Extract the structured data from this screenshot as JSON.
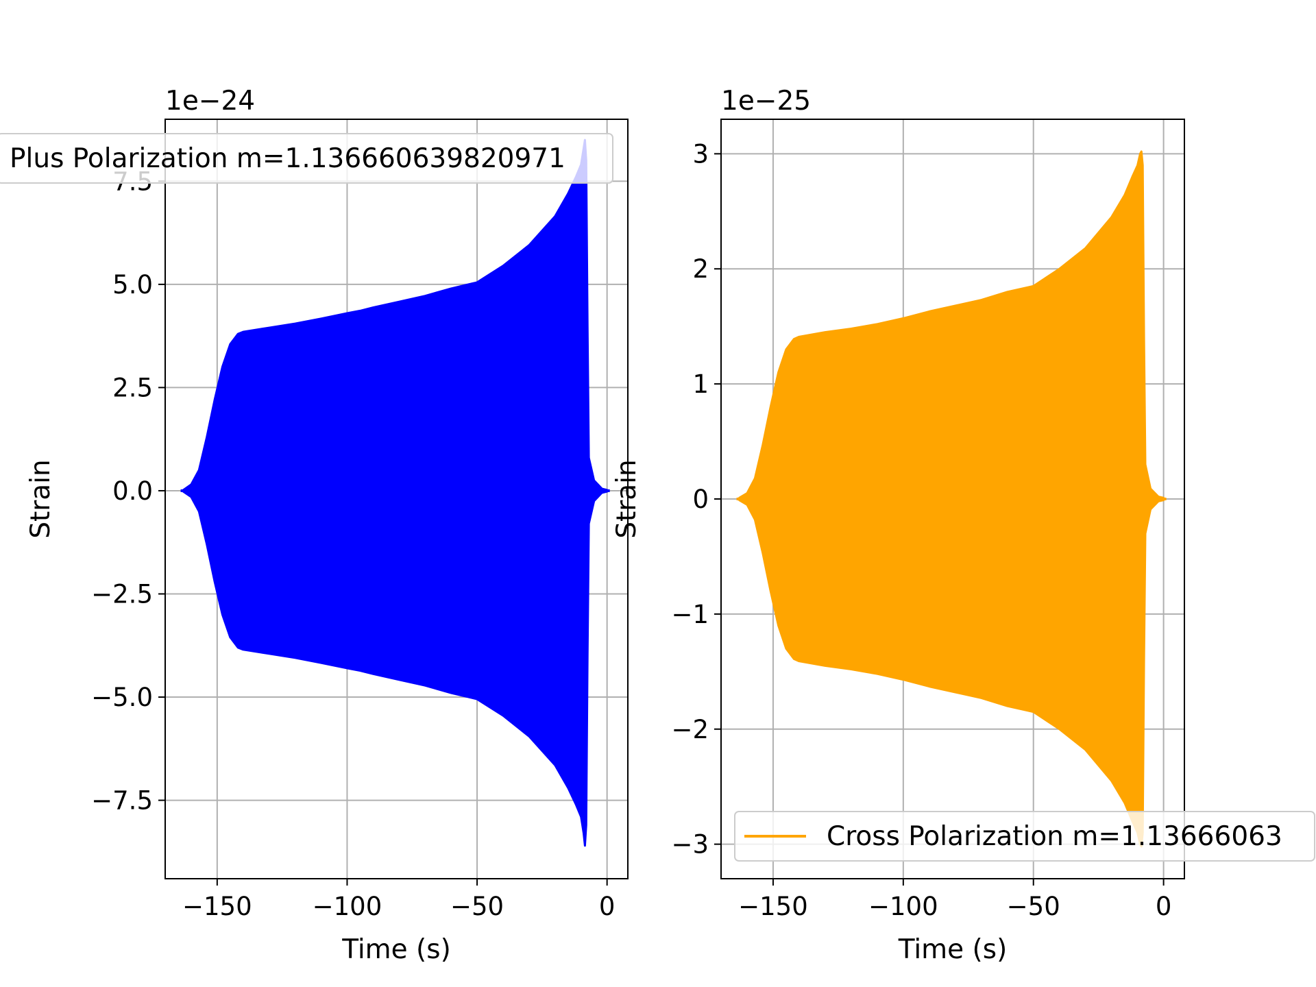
{
  "chart_data": [
    {
      "type": "line",
      "xlabel": "Time (s)",
      "ylabel": "Strain",
      "offset_text": "1e−24",
      "xlim": [
        -170,
        8
      ],
      "ylim": [
        -9.4,
        9.0
      ],
      "xticks": [
        -150,
        -100,
        -50,
        0
      ],
      "xtick_labels": [
        "−150",
        "−100",
        "−50",
        "0"
      ],
      "yticks": [
        -7.5,
        -5.0,
        -2.5,
        0.0,
        2.5,
        5.0,
        7.5
      ],
      "ytick_labels": [
        "−7.5",
        "−5.0",
        "−2.5",
        "0.0",
        "2.5",
        "5.0",
        "7.5"
      ],
      "grid": true,
      "legend": {
        "placement": "top-left",
        "has_line_sample": false
      },
      "series": [
        {
          "name": "Plus Polarization m=1.136660639820971",
          "color": "#0000ff",
          "envelope": {
            "t": [
              -163,
              -160,
              -157,
              -154,
              -151,
              -148,
              -145,
              -142,
              -140,
              -130,
              -120,
              -110,
              -100,
              -95,
              -90,
              -80,
              -70,
              -60,
              -52,
              -50,
              -40,
              -30,
              -20,
              -15,
              -12,
              -10,
              -9,
              -8.5,
              -8,
              -7.5,
              -7,
              -5,
              -2,
              0
            ],
            "upper": [
              0.02,
              0.15,
              0.5,
              1.3,
              2.2,
              3.0,
              3.55,
              3.8,
              3.85,
              3.95,
              4.05,
              4.17,
              4.3,
              4.36,
              4.44,
              4.58,
              4.72,
              4.9,
              5.02,
              5.05,
              5.45,
              5.95,
              6.65,
              7.2,
              7.6,
              7.9,
              8.3,
              8.5,
              8.0,
              4.0,
              0.8,
              0.25,
              0.05,
              0.02
            ],
            "lower": [
              -0.02,
              -0.15,
              -0.5,
              -1.3,
              -2.2,
              -3.0,
              -3.55,
              -3.8,
              -3.85,
              -3.95,
              -4.05,
              -4.17,
              -4.3,
              -4.36,
              -4.44,
              -4.58,
              -4.72,
              -4.9,
              -5.02,
              -5.05,
              -5.45,
              -5.95,
              -6.65,
              -7.2,
              -7.6,
              -7.9,
              -8.3,
              -8.6,
              -8.1,
              -4.0,
              -0.8,
              -0.25,
              -0.05,
              -0.02
            ]
          }
        }
      ]
    },
    {
      "type": "line",
      "xlabel": "Time (s)",
      "ylabel": "Strain",
      "offset_text": "1e−25",
      "xlim": [
        -170,
        8
      ],
      "ylim": [
        -3.3,
        3.3
      ],
      "xticks": [
        -150,
        -100,
        -50,
        0
      ],
      "xtick_labels": [
        "−150",
        "−100",
        "−50",
        "0"
      ],
      "yticks": [
        -3,
        -2,
        -1,
        0,
        1,
        2,
        3
      ],
      "ytick_labels": [
        "−3",
        "−2",
        "−1",
        "0",
        "1",
        "2",
        "3"
      ],
      "grid": true,
      "legend": {
        "placement": "lower-left",
        "has_line_sample": true
      },
      "series": [
        {
          "name": "Cross Polarization m=1.13666063",
          "color": "#ffa500",
          "envelope": {
            "t": [
              -163,
              -160,
              -157,
              -154,
              -151,
              -148,
              -145,
              -142,
              -140,
              -130,
              -120,
              -110,
              -100,
              -95,
              -90,
              -80,
              -70,
              -60,
              -52,
              -50,
              -40,
              -30,
              -20,
              -15,
              -12,
              -10,
              -9,
              -8.5,
              -8,
              -7.5,
              -7,
              -5,
              -2,
              0
            ],
            "upper": [
              0.01,
              0.05,
              0.18,
              0.47,
              0.8,
              1.1,
              1.3,
              1.39,
              1.41,
              1.45,
              1.48,
              1.52,
              1.57,
              1.6,
              1.63,
              1.68,
              1.73,
              1.8,
              1.84,
              1.85,
              2.0,
              2.18,
              2.45,
              2.64,
              2.8,
              2.9,
              3.0,
              3.02,
              2.9,
              1.4,
              0.3,
              0.09,
              0.02,
              0.01
            ],
            "lower": [
              -0.01,
              -0.05,
              -0.18,
              -0.47,
              -0.8,
              -1.1,
              -1.3,
              -1.39,
              -1.41,
              -1.45,
              -1.48,
              -1.52,
              -1.57,
              -1.6,
              -1.63,
              -1.68,
              -1.73,
              -1.8,
              -1.84,
              -1.85,
              -2.0,
              -2.18,
              -2.45,
              -2.64,
              -2.8,
              -2.9,
              -3.0,
              -3.02,
              -2.9,
              -1.4,
              -0.3,
              -0.09,
              -0.02,
              -0.01
            ]
          }
        }
      ]
    }
  ]
}
